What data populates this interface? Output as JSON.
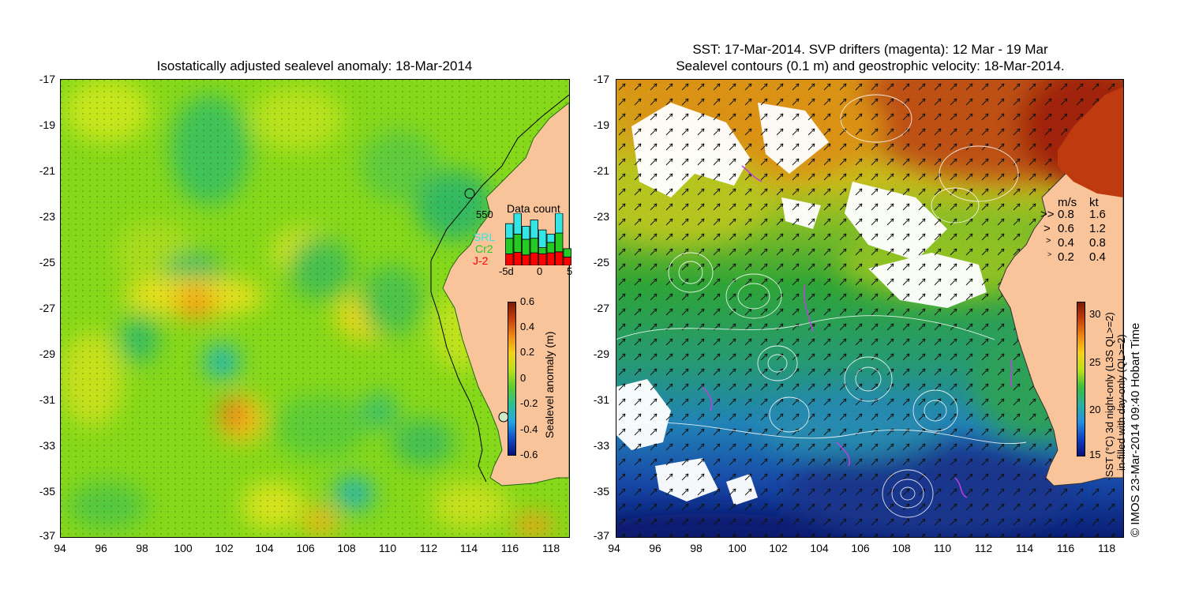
{
  "left_panel": {
    "title": "Isostatically adjusted sealevel anomaly: 18-Mar-2014",
    "lat_ticks": [
      "-17",
      "-19",
      "-21",
      "-23",
      "-25",
      "-27",
      "-29",
      "-31",
      "-33",
      "-35",
      "-37"
    ],
    "lon_ticks": [
      "94",
      "96",
      "98",
      "100",
      "102",
      "104",
      "106",
      "108",
      "110",
      "112",
      "114",
      "116",
      "118"
    ],
    "colorbar": {
      "label": "Sealevel anomaly (m)",
      "ticks": [
        "0.6",
        "0.4",
        "0.2",
        "0",
        "-0.2",
        "-0.4",
        "-0.6"
      ]
    },
    "data_count": {
      "title": "Data count",
      "max_label": "550",
      "x_ticks": [
        "-5d",
        "0",
        "5"
      ],
      "legend": [
        {
          "name": "SRL",
          "color": "#33e6e6"
        },
        {
          "name": "Cr2",
          "color": "#22cc22"
        },
        {
          "name": "J-2",
          "color": "#ff0000"
        }
      ],
      "bars": [
        {
          "j2": 0.22,
          "cr2": 0.3,
          "srl": 0.28
        },
        {
          "j2": 0.25,
          "cr2": 0.35,
          "srl": 0.4
        },
        {
          "j2": 0.2,
          "cr2": 0.3,
          "srl": 0.25
        },
        {
          "j2": 0.24,
          "cr2": 0.28,
          "srl": 0.35
        },
        {
          "j2": 0.22,
          "cr2": 0.12,
          "srl": 0.34
        },
        {
          "j2": 0.24,
          "cr2": 0.2,
          "srl": 0.16
        },
        {
          "j2": 0.26,
          "cr2": 0.36,
          "srl": 0.38
        },
        {
          "j2": 0.16,
          "cr2": 0.16,
          "srl": 0.0
        }
      ]
    }
  },
  "right_panel": {
    "title_line1": "SST: 17-Mar-2014. SVP drifters (magenta): 12 Mar - 19 Mar",
    "title_line2": "Sealevel contours (0.1 m) and geostrophic velocity: 18-Mar-2014.",
    "lat_ticks": [
      "-17",
      "-19",
      "-21",
      "-23",
      "-25",
      "-27",
      "-29",
      "-31",
      "-33",
      "-35",
      "-37"
    ],
    "lon_ticks": [
      "94",
      "96",
      "98",
      "100",
      "102",
      "104",
      "106",
      "108",
      "110",
      "112",
      "114",
      "116",
      "118"
    ],
    "velocity_legend": {
      "header_ms": "m/s",
      "header_kt": "kt",
      "rows": [
        {
          "ms": "0.8",
          "kt": "1.6"
        },
        {
          "ms": "0.6",
          "kt": "1.2"
        },
        {
          "ms": "0.4",
          "kt": "0.8"
        },
        {
          "ms": "0.2",
          "kt": "0.4"
        }
      ]
    },
    "colorbar": {
      "label_line1": "SST (°C) 3d night-only (L3S QL>=2)",
      "label_line2": "in-filled with day-only (QL>=2)",
      "ticks": [
        "30",
        "25",
        "20",
        "15"
      ]
    },
    "credit": "© IMOS 23-Mar-2014 09:40 Hobart Time"
  },
  "colors": {
    "land": "#f9c49a",
    "anomaly_base": "#7fd61a",
    "sst_warm": "#c93a10",
    "sst_cool": "#0a2a8f"
  }
}
